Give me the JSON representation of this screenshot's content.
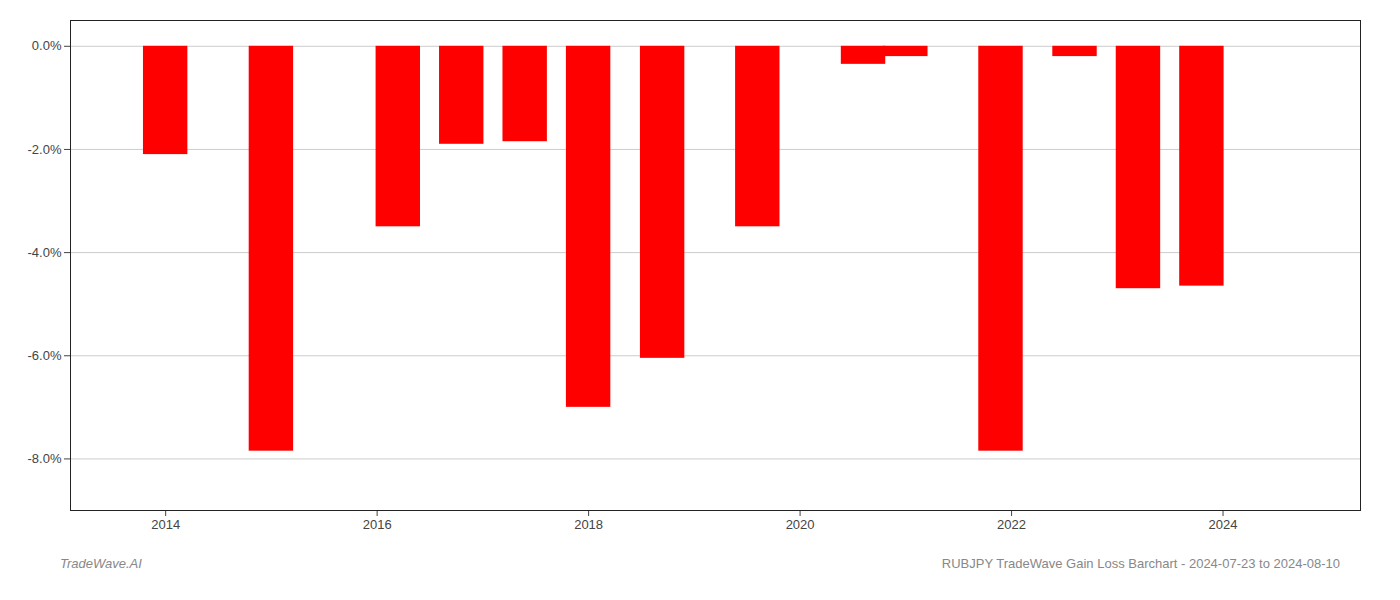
{
  "chart_data": {
    "type": "bar",
    "x": [
      2014.0,
      2015.0,
      2016.2,
      2016.8,
      2017.4,
      2018.0,
      2018.7,
      2019.6,
      2020.6,
      2021.0,
      2021.9,
      2022.6,
      2023.2,
      2023.8
    ],
    "values": [
      -2.1,
      -7.85,
      -3.5,
      -1.9,
      -1.85,
      -7.0,
      -6.05,
      -3.5,
      -0.35,
      -0.2,
      -7.85,
      -0.2,
      -4.7,
      -4.65
    ],
    "color": "#ff0000",
    "xlim": [
      2013.1,
      2025.3
    ],
    "xticks": [
      2014,
      2016,
      2018,
      2020,
      2022,
      2024
    ],
    "ylim": [
      -9.0,
      0.5
    ],
    "yticks": [
      {
        "value": 0.0,
        "label": "0.0%"
      },
      {
        "value": -2.0,
        "label": "-2.0%"
      },
      {
        "value": -4.0,
        "label": "-4.0%"
      },
      {
        "value": -6.0,
        "label": "-6.0%"
      },
      {
        "value": -8.0,
        "label": "-8.0%"
      }
    ],
    "grid": true,
    "annotations": [
      "TradeWave.AI",
      "RUBJPY TradeWave Gain Loss Barchart - 2024-07-23 to 2024-08-10"
    ]
  }
}
